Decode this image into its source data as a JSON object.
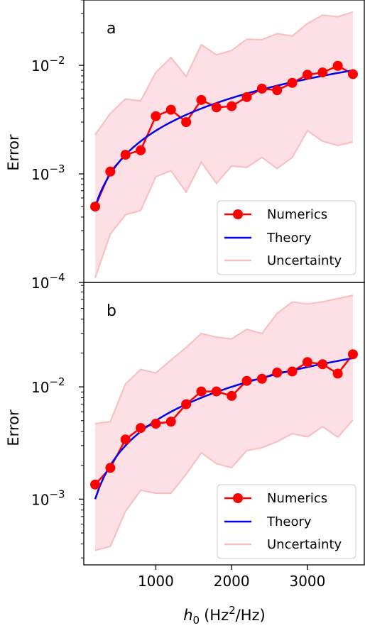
{
  "chart_data": [
    {
      "type": "line",
      "panel_label": "a",
      "ylabel": "Error",
      "xlabel": "",
      "yscale": "log",
      "ylim": [
        0.0001,
        0.04
      ],
      "xlim": [
        50,
        3750
      ],
      "x": [
        200,
        400,
        600,
        800,
        1000,
        1200,
        1400,
        1600,
        1800,
        2000,
        2200,
        2400,
        2600,
        2800,
        3000,
        3200,
        3400,
        3600
      ],
      "y_tick_labels": [
        {
          "value": 0.0001,
          "base": "10",
          "exp": "−4"
        },
        {
          "value": 0.001,
          "base": "10",
          "exp": "−3"
        },
        {
          "value": 0.01,
          "base": "10",
          "exp": "−2"
        }
      ],
      "series": [
        {
          "name": "Numerics",
          "color": "#ff0000",
          "marker": "circle",
          "values": [
            0.0005,
            0.00105,
            0.0015,
            0.00165,
            0.0034,
            0.0039,
            0.003,
            0.0048,
            0.0041,
            0.0042,
            0.0051,
            0.0061,
            0.0059,
            0.0069,
            0.0082,
            0.0086,
            0.0099,
            0.0083
          ]
        },
        {
          "name": "Theory",
          "color": "#0000ee",
          "curve": "proportional_to_x",
          "values_at_x": {
            "x": [
              200,
              3600
            ],
            "y": [
              0.0005,
              0.009
            ]
          }
        },
        {
          "name": "Uncertainty",
          "color": "#f9c0c0",
          "fill": "#fce0e6",
          "upper": [
            0.0023,
            0.0036,
            0.0049,
            0.0047,
            0.0086,
            0.0118,
            0.0079,
            0.0155,
            0.0125,
            0.0137,
            0.0174,
            0.0172,
            0.0196,
            0.0186,
            0.0243,
            0.029,
            0.028,
            0.031
          ],
          "lower": [
            0.00011,
            0.00028,
            0.00042,
            0.00046,
            0.00094,
            0.00107,
            0.00068,
            0.00128,
            0.00082,
            0.00118,
            0.00115,
            0.00142,
            0.00112,
            0.00142,
            0.0025,
            0.002,
            0.00183,
            0.00197
          ]
        }
      ],
      "legend": {
        "placement": "lower-right",
        "entries": [
          "Numerics",
          "Theory",
          "Uncertainty"
        ]
      }
    },
    {
      "type": "line",
      "panel_label": "b",
      "ylabel": "Error",
      "xlabel": "h_0 (Hz^2/Hz)",
      "yscale": "log",
      "ylim": [
        0.00026,
        0.085
      ],
      "xlim": [
        50,
        3750
      ],
      "x": [
        200,
        400,
        600,
        800,
        1000,
        1200,
        1400,
        1600,
        1800,
        2000,
        2200,
        2400,
        2600,
        2800,
        3000,
        3200,
        3400,
        3600
      ],
      "x_tick_labels": [
        "1000",
        "2000",
        "3000"
      ],
      "x_ticks": [
        1000,
        2000,
        3000
      ],
      "y_tick_labels": [
        {
          "value": 0.001,
          "base": "10",
          "exp": "−3"
        },
        {
          "value": 0.01,
          "base": "10",
          "exp": "−2"
        }
      ],
      "series": [
        {
          "name": "Numerics",
          "color": "#ff0000",
          "marker": "circle",
          "values": [
            0.00135,
            0.0019,
            0.0034,
            0.0043,
            0.0047,
            0.0049,
            0.007,
            0.0091,
            0.0091,
            0.0083,
            0.0113,
            0.0118,
            0.0134,
            0.0137,
            0.0166,
            0.0159,
            0.0131,
            0.0195
          ]
        },
        {
          "name": "Theory",
          "color": "#0000ee",
          "curve": "proportional_to_x",
          "values_at_x": {
            "x": [
              200,
              3600
            ],
            "y": [
              0.001,
              0.018
            ]
          }
        },
        {
          "name": "Uncertainty",
          "color": "#f9c0c0",
          "fill": "#fce0e6",
          "upper": [
            0.0047,
            0.0049,
            0.0106,
            0.0143,
            0.0133,
            0.0173,
            0.0224,
            0.0298,
            0.0277,
            0.0267,
            0.0325,
            0.0298,
            0.045,
            0.057,
            0.0547,
            0.0571,
            0.0611,
            0.0651
          ],
          "lower": [
            0.00035,
            0.00038,
            0.00078,
            0.0012,
            0.00113,
            0.00113,
            0.00167,
            0.00259,
            0.00207,
            0.00191,
            0.00271,
            0.00287,
            0.00325,
            0.00383,
            0.00359,
            0.00442,
            0.00357,
            0.00506
          ]
        }
      ],
      "legend": {
        "placement": "lower-right",
        "entries": [
          "Numerics",
          "Theory",
          "Uncertainty"
        ]
      }
    }
  ],
  "figure": {
    "xlabel_main": "h",
    "xlabel_sub": "0",
    "xlabel_unit_open": "(Hz",
    "xlabel_sup": "2",
    "xlabel_unit_close": "/Hz)",
    "panels": [
      {
        "label": "a",
        "ylabel": "Error",
        "legend": [
          "Numerics",
          "Theory",
          "Uncertainty"
        ]
      },
      {
        "label": "b",
        "ylabel": "Error",
        "legend": [
          "Numerics",
          "Theory",
          "Uncertainty"
        ]
      }
    ],
    "colors": {
      "numerics": "#ff0000",
      "theory": "#0000ee",
      "uncertainty_line": "#f9c0c0",
      "uncertainty_fill": "#fce0e6"
    }
  }
}
